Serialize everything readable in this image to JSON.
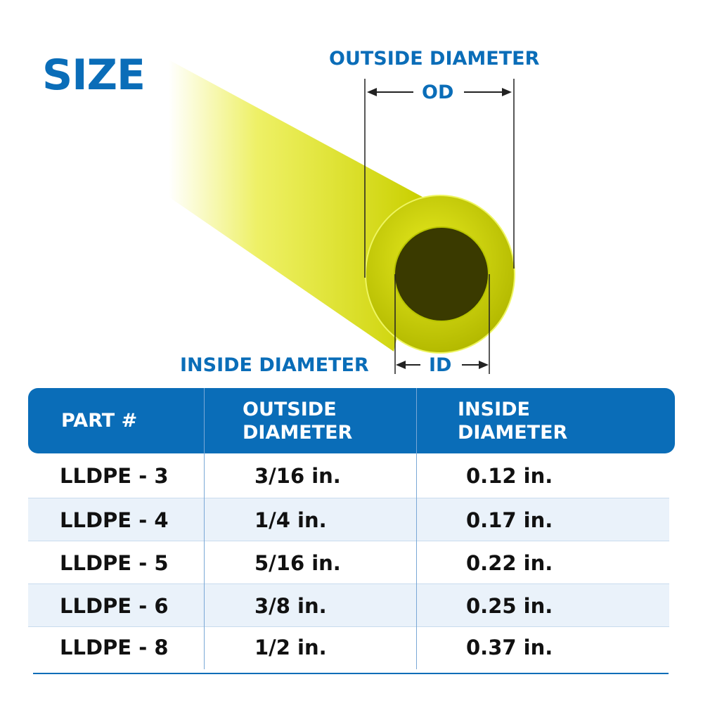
{
  "title": "SIZE",
  "diagram": {
    "od_label": "OUTSIDE DIAMETER",
    "od_abbr": "OD",
    "id_label": "INSIDE DIAMETER",
    "id_abbr": "ID",
    "tube_color": "#d8e000"
  },
  "table": {
    "headers": [
      "PART #",
      "OUTSIDE DIAMETER",
      "INSIDE DIAMETER"
    ],
    "header_color": "#0a6db8",
    "rows": [
      [
        "LLDPE - 3",
        "3/16 in.",
        "0.12 in."
      ],
      [
        "LLDPE - 4",
        "1/4 in.",
        "0.17 in."
      ],
      [
        "LLDPE - 5",
        "5/16 in.",
        "0.22 in."
      ],
      [
        "LLDPE - 6",
        "3/8 in.",
        "0.25 in."
      ],
      [
        "LLDPE - 8",
        "1/2 in.",
        "0.37 in."
      ]
    ]
  }
}
